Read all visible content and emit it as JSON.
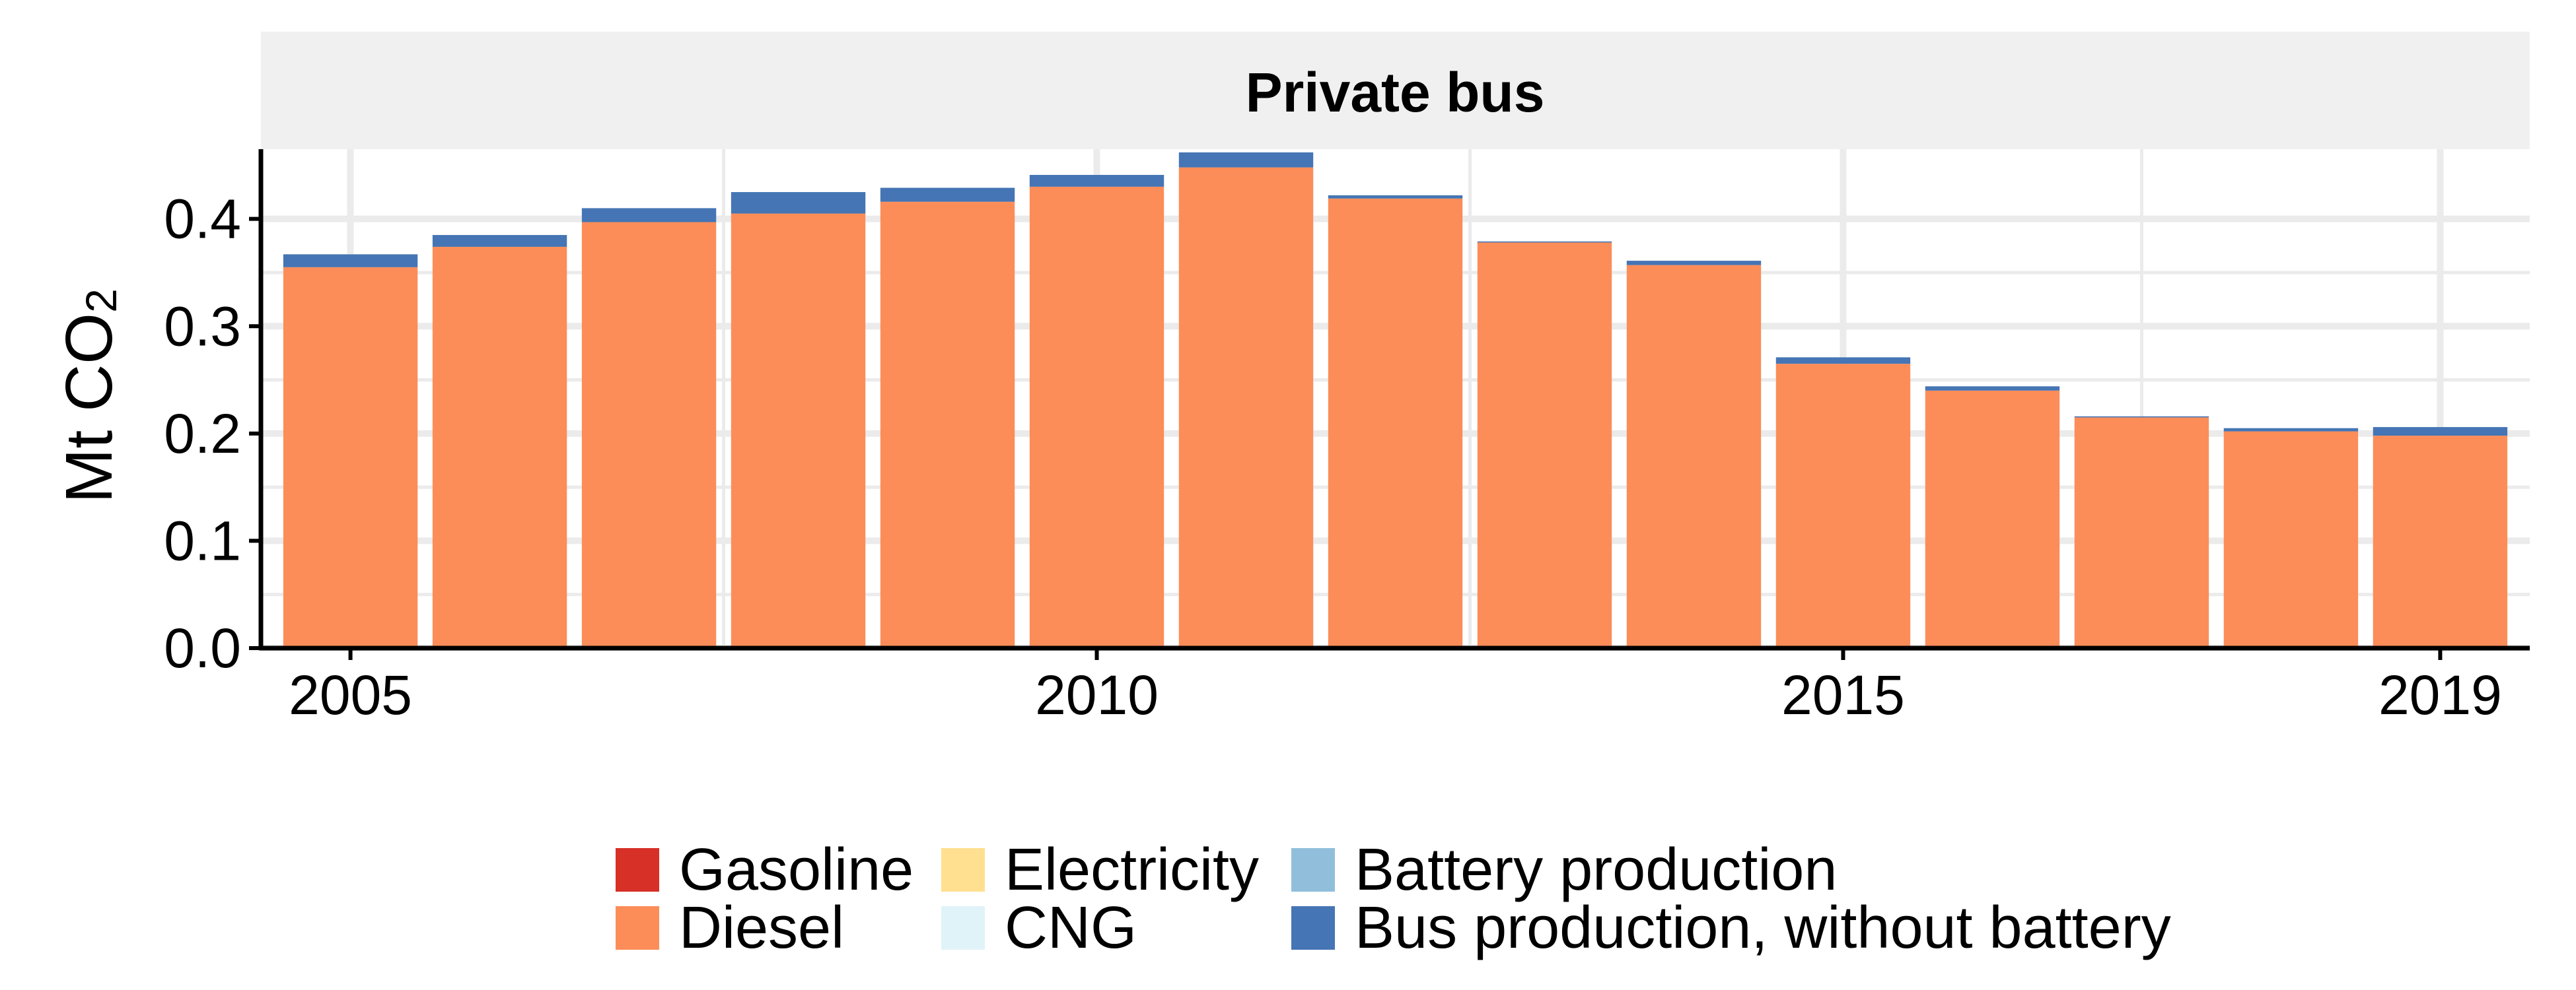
{
  "chart_data": {
    "type": "bar",
    "stacked": true,
    "facet_title": "Private bus",
    "ylabel_main": "Mt CO",
    "ylabel_sub": "2",
    "xlim": [
      2004.4,
      2019.6
    ],
    "ylim": [
      0,
      0.465
    ],
    "x_ticks": [
      "2005",
      "2010",
      "2015",
      "2019"
    ],
    "y_ticks": [
      "0.0",
      "0.1",
      "0.2",
      "0.3",
      "0.4"
    ],
    "grid": true,
    "legend_position": "bottom",
    "x": [
      2005,
      2006,
      2007,
      2008,
      2009,
      2010,
      2011,
      2012,
      2013,
      2014,
      2015,
      2016,
      2017,
      2018,
      2019
    ],
    "series": [
      {
        "name": "Gasoline",
        "color": "#D73027",
        "values": [
          0,
          0,
          0,
          0,
          0,
          0,
          0,
          0,
          0,
          0,
          0,
          0,
          0,
          0,
          0
        ]
      },
      {
        "name": "Diesel",
        "color": "#FC8D59",
        "values": [
          0.355,
          0.374,
          0.397,
          0.405,
          0.416,
          0.43,
          0.448,
          0.419,
          0.378,
          0.357,
          0.265,
          0.24,
          0.215,
          0.202,
          0.198
        ]
      },
      {
        "name": "Electricity",
        "color": "#FEE090",
        "values": [
          0,
          0,
          0,
          0,
          0,
          0,
          0,
          0,
          0,
          0,
          0,
          0,
          0,
          0,
          0
        ]
      },
      {
        "name": "CNG",
        "color": "#E0F3F8",
        "values": [
          0,
          0,
          0,
          0,
          0,
          0,
          0,
          0,
          0,
          0,
          0,
          0,
          0,
          0,
          0
        ]
      },
      {
        "name": "Battery production",
        "color": "#91BFDB",
        "values": [
          0,
          0,
          0,
          0,
          0,
          0,
          0,
          0,
          0,
          0,
          0,
          0,
          0,
          0,
          0
        ]
      },
      {
        "name": "Bus production, without battery",
        "color": "#4575B4",
        "values": [
          0.012,
          0.011,
          0.013,
          0.02,
          0.013,
          0.011,
          0.014,
          0.003,
          0.001,
          0.004,
          0.006,
          0.004,
          0.001,
          0.003,
          0.008
        ]
      }
    ]
  },
  "colors": {
    "strip_background": "#F0F0F0",
    "grid": "#EBEBEB",
    "axis": "#000000"
  }
}
